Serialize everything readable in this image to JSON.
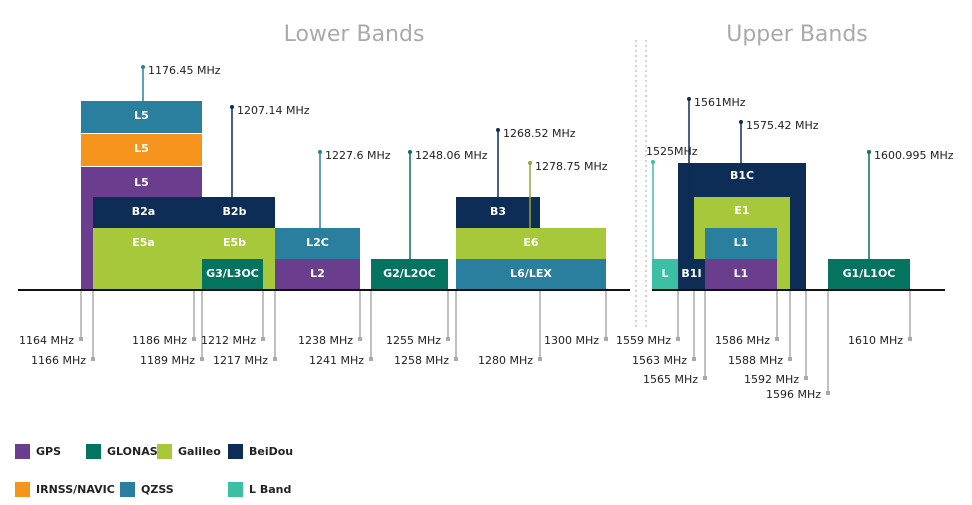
{
  "headings": [
    "Lower Bands",
    "Upper Bands"
  ],
  "blocks": [
    {
      "label": "L5"
    },
    {
      "label": "L5"
    },
    {
      "label": "L5"
    },
    {
      "label": "B2a"
    },
    {
      "label": "B2b"
    },
    {
      "label": "E5a"
    },
    {
      "label": "E5b"
    },
    {
      "label": "G3/L3OC"
    },
    {
      "label": "L2C"
    },
    {
      "label": "L2"
    },
    {
      "label": "G2/L2OC"
    },
    {
      "label": "B3"
    },
    {
      "label": "E6"
    },
    {
      "label": "L6/LEX"
    },
    {
      "label": "B1C"
    },
    {
      "label": "E1"
    },
    {
      "label": "L1"
    },
    {
      "label": "L1"
    },
    {
      "label": "B1I"
    },
    {
      "label": "L"
    },
    {
      "label": "G1/L1OC"
    }
  ],
  "center_labels": [
    "1176.45 MHz",
    "1207.14 MHz",
    "1227.6 MHz",
    "1248.06 MHz",
    "1268.52 MHz",
    "1278.75 MHz",
    "1525MHz",
    "1561MHz",
    "1575.42 MHz",
    "1600.995 MHz"
  ],
  "edge_labels": [
    "1164 MHz",
    "1166 MHz",
    "1186 MHz",
    "1189 MHz",
    "1212 MHz",
    "1217 MHz",
    "1238 MHz",
    "1241 MHz",
    "1255 MHz",
    "1258 MHz",
    "1280 MHz",
    "1300 MHz",
    "1559 MHz",
    "1563 MHz",
    "1565 MHz",
    "1586 MHz",
    "1588 MHz",
    "1592 MHz",
    "1596 MHz",
    "1610 MHz"
  ],
  "legend": [
    "GPS",
    "GLONASS",
    "Galileo",
    "BeiDou",
    "IRNSS/NAVIC",
    "QZSS",
    "L Band"
  ]
}
